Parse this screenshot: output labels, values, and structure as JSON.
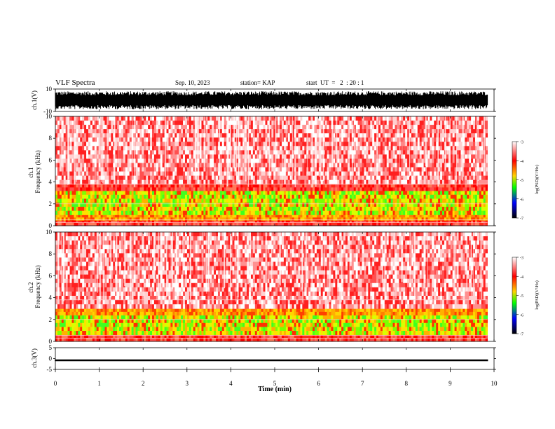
{
  "header": {
    "title": "VLF Spectra",
    "date": "Sep. 10, 2023",
    "station": "station= KAP",
    "start": "start  UT  =   2  : 20 : 1"
  },
  "colors": {
    "waveform": "#000000",
    "colormap": [
      "#ffffff",
      "#ff0000",
      "#ffd400",
      "#00ff00",
      "#0000ff",
      "#000000"
    ]
  },
  "chart_data": [
    {
      "type": "line",
      "name": "ch1-waveform",
      "ylabel": "ch.1(V)",
      "ylim": [
        -10,
        10
      ],
      "yticks": [
        "10",
        "-10"
      ],
      "xlim": [
        0,
        9.85
      ],
      "description_values": {
        "center": 0,
        "amplitude_range": [
          -8,
          8
        ]
      }
    },
    {
      "type": "heatmap",
      "name": "ch1-spectrogram",
      "ylabel": "ch.1\nFrequency (kHz)",
      "ylabel_lines": [
        "ch.1",
        "Frequency (kHz)"
      ],
      "ylim": [
        0,
        10
      ],
      "yticks": [
        "0",
        "2",
        "4",
        "6",
        "8",
        "10"
      ],
      "xlim": [
        0,
        9.85
      ],
      "bands": [
        {
          "from": 0,
          "to": 0.5,
          "level": "red"
        },
        {
          "from": 0.5,
          "to": 1.0,
          "level": "orange"
        },
        {
          "from": 1.0,
          "to": 3.2,
          "level": "green-yellow"
        },
        {
          "from": 3.2,
          "to": 3.8,
          "level": "red"
        },
        {
          "from": 3.8,
          "to": 10,
          "level": "red-white"
        }
      ],
      "colorbar": {
        "label": "log(PSD)(V²/Hz)",
        "ticks": [
          "-3",
          "-4",
          "-5",
          "-6",
          "-7"
        ],
        "range": [
          -7,
          -3
        ]
      }
    },
    {
      "type": "heatmap",
      "name": "ch2-spectrogram",
      "ylabel": "ch.2\nFrequency (kHz)",
      "ylabel_lines": [
        "ch.2",
        "Frequency (kHz)"
      ],
      "ylim": [
        0,
        10
      ],
      "yticks": [
        "0",
        "2",
        "4",
        "6",
        "8",
        "10"
      ],
      "xlim": [
        0,
        9.85
      ],
      "bands": [
        {
          "from": 0,
          "to": 0.6,
          "level": "red"
        },
        {
          "from": 0.6,
          "to": 2.4,
          "level": "green-yellow"
        },
        {
          "from": 2.4,
          "to": 3.0,
          "level": "orange"
        },
        {
          "from": 3.0,
          "to": 10,
          "level": "red-white"
        }
      ],
      "colorbar": {
        "label": "log(PSD)(V²/Hz)",
        "ticks": [
          "-3",
          "-4",
          "-5",
          "-6",
          "-7"
        ],
        "range": [
          -7,
          -3
        ]
      }
    },
    {
      "type": "line",
      "name": "ch3-waveform",
      "ylabel": "ch.3(V)",
      "ylim": [
        -5,
        5
      ],
      "yticks": [
        "5",
        "0",
        "-5"
      ],
      "xlim": [
        0,
        9.85
      ],
      "description_values": {
        "center": -0.8,
        "amplitude_range": [
          -1.2,
          -0.4
        ]
      }
    }
  ],
  "xaxis": {
    "label": "Time (min)",
    "range": [
      0,
      10
    ],
    "ticks": [
      "0",
      "1",
      "2",
      "3",
      "4",
      "5",
      "6",
      "7",
      "8",
      "9",
      "10"
    ]
  }
}
